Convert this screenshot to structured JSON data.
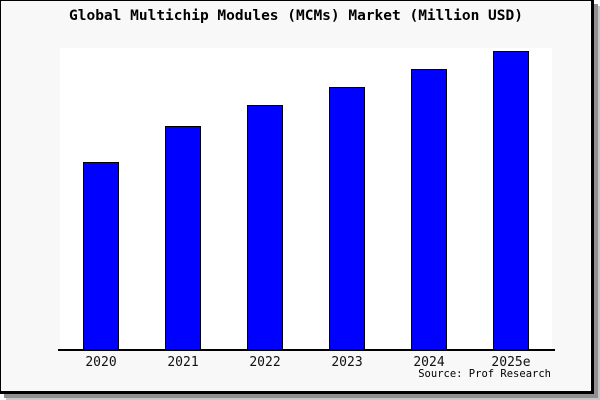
{
  "title": "Global Multichip Modules (MCMs) Market (Million USD)",
  "source_caption": "Source: Prof Research",
  "chart_data": {
    "type": "bar",
    "title": "Global Multichip Modules (MCMs) Market (Million USD)",
    "categories": [
      "2020",
      "2021",
      "2022",
      "2023",
      "2024",
      "2025e"
    ],
    "values": [
      63,
      75,
      82,
      88,
      94,
      100
    ],
    "xlabel": "",
    "ylabel": "",
    "ylim": [
      0,
      101
    ],
    "gridlines": false,
    "legend": "none",
    "y_axis_labels_visible": false,
    "annotation": "Source: Prof Research"
  },
  "colors": {
    "bar_fill": "#0000fe",
    "bar_border": "#000000",
    "figure_background": "#f8f8f8",
    "plot_background": "#ffffff",
    "frame_border": "#000000",
    "text": "#000000",
    "shadow_dark": "#8f8f8f",
    "shadow_light": "#c6c6c6"
  }
}
